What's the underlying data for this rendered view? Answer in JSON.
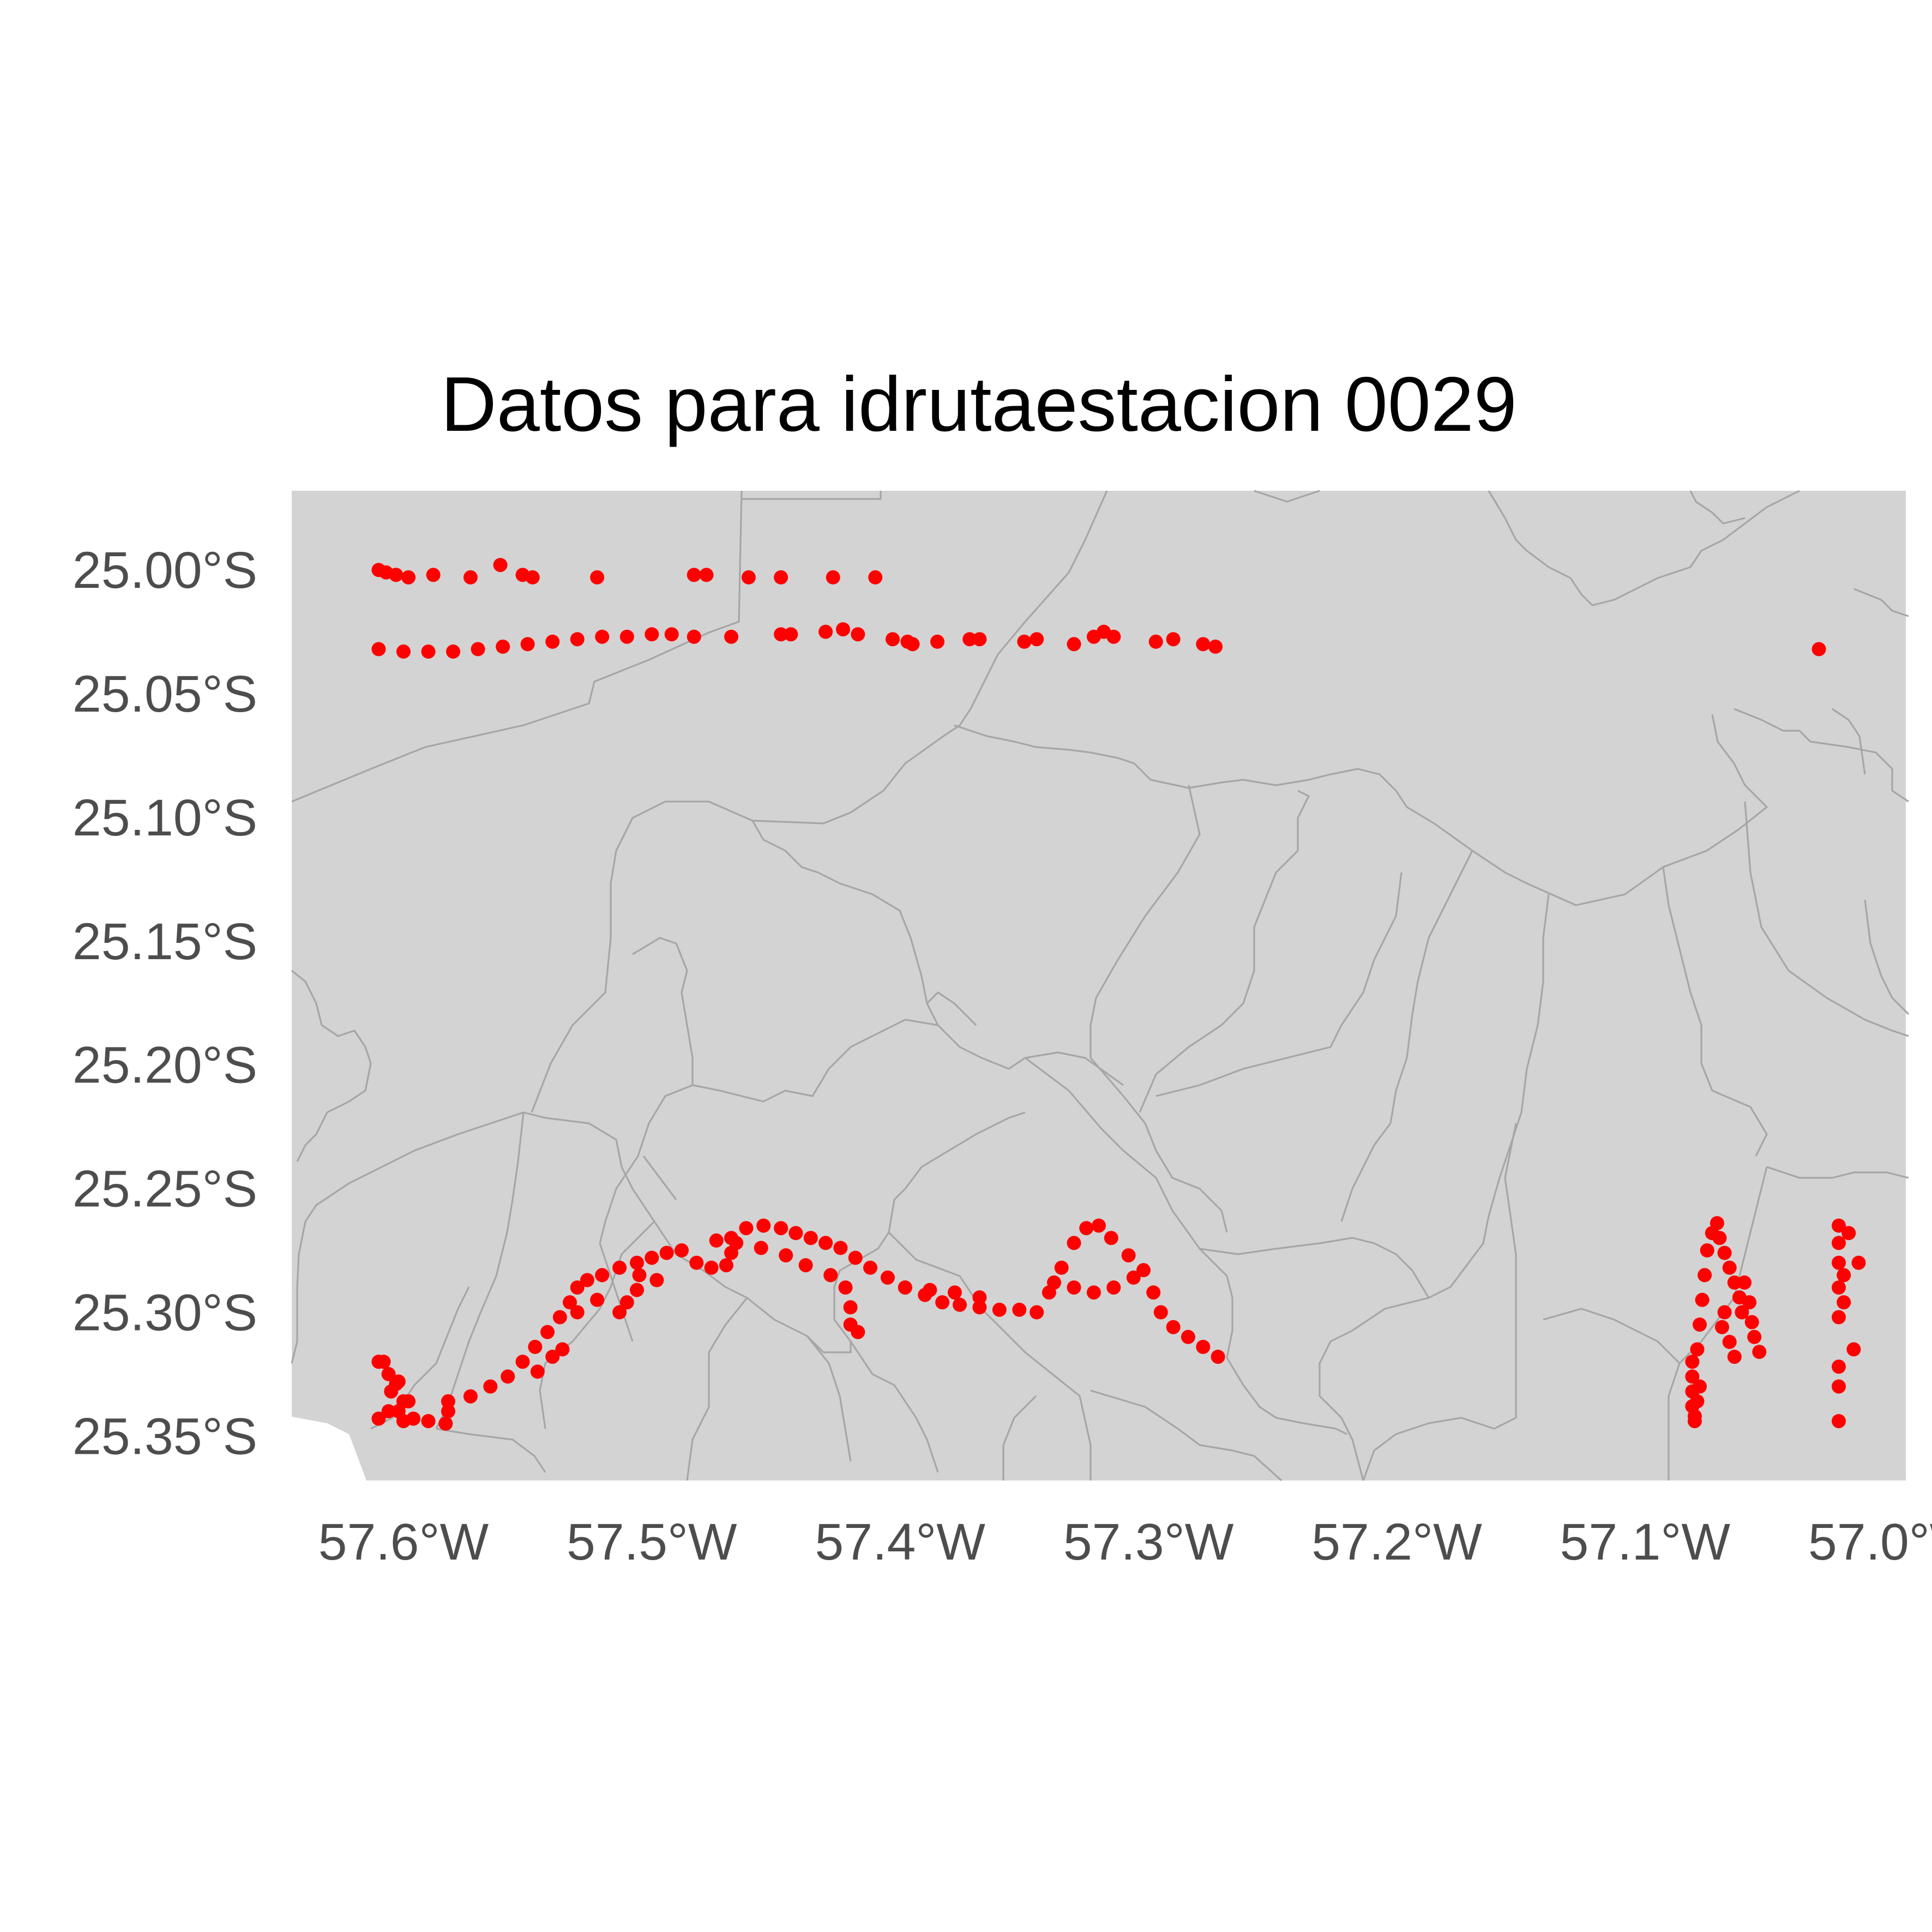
{
  "chart_data": {
    "type": "scatter",
    "title": "Datos para idrutaestacion 0029",
    "xlabel": "",
    "ylabel": "",
    "xlim": [
      -57.645,
      -56.995
    ],
    "ylim": [
      -25.368,
      -24.968
    ],
    "x_ticks": [
      {
        "value": -57.6,
        "label": "57.6°W"
      },
      {
        "value": -57.5,
        "label": "57.5°W"
      },
      {
        "value": -57.4,
        "label": "57.4°W"
      },
      {
        "value": -57.3,
        "label": "57.3°W"
      },
      {
        "value": -57.2,
        "label": "57.2°W"
      },
      {
        "value": -57.1,
        "label": "57.1°W"
      },
      {
        "value": -57.0,
        "label": "57.0°W"
      }
    ],
    "y_ticks": [
      {
        "value": -25.0,
        "label": "25.00°S"
      },
      {
        "value": -25.05,
        "label": "25.05°S"
      },
      {
        "value": -25.1,
        "label": "25.10°S"
      },
      {
        "value": -25.15,
        "label": "25.15°S"
      },
      {
        "value": -25.2,
        "label": "25.20°S"
      },
      {
        "value": -25.25,
        "label": "25.25°S"
      },
      {
        "value": -25.3,
        "label": "25.30°S"
      },
      {
        "value": -25.35,
        "label": "25.35°S"
      }
    ],
    "grid": false,
    "legend": "none",
    "colors": {
      "points": "#ff0000",
      "land": "#d3d3d3",
      "boundaries": "#a6a6a6",
      "title": "#000000",
      "ticks": "#4d4d4d"
    },
    "series": [
      {
        "points": [
          [
            -57.61,
            -25.0
          ],
          [
            -57.607,
            -25.001
          ],
          [
            -57.603,
            -25.002
          ],
          [
            -57.598,
            -25.003
          ],
          [
            -57.588,
            -25.002
          ],
          [
            -57.573,
            -25.003
          ],
          [
            -57.561,
            -24.998
          ],
          [
            -57.552,
            -25.002
          ],
          [
            -57.548,
            -25.003
          ],
          [
            -57.522,
            -25.003
          ],
          [
            -57.483,
            -25.002
          ],
          [
            -57.478,
            -25.002
          ],
          [
            -57.461,
            -25.003
          ],
          [
            -57.448,
            -25.003
          ],
          [
            -57.427,
            -25.003
          ],
          [
            -57.41,
            -25.003
          ],
          [
            -57.61,
            -25.032
          ],
          [
            -57.6,
            -25.033
          ],
          [
            -57.59,
            -25.033
          ],
          [
            -57.58,
            -25.033
          ],
          [
            -57.57,
            -25.032
          ],
          [
            -57.56,
            -25.031
          ],
          [
            -57.55,
            -25.03
          ],
          [
            -57.54,
            -25.029
          ],
          [
            -57.53,
            -25.028
          ],
          [
            -57.52,
            -25.027
          ],
          [
            -57.51,
            -25.027
          ],
          [
            -57.5,
            -25.026
          ],
          [
            -57.492,
            -25.026
          ],
          [
            -57.483,
            -25.027
          ],
          [
            -57.468,
            -25.027
          ],
          [
            -57.448,
            -25.026
          ],
          [
            -57.444,
            -25.026
          ],
          [
            -57.43,
            -25.025
          ],
          [
            -57.423,
            -25.024
          ],
          [
            -57.417,
            -25.026
          ],
          [
            -57.403,
            -25.028
          ],
          [
            -57.397,
            -25.029
          ],
          [
            -57.395,
            -25.03
          ],
          [
            -57.385,
            -25.029
          ],
          [
            -57.372,
            -25.028
          ],
          [
            -57.368,
            -25.028
          ],
          [
            -57.35,
            -25.029
          ],
          [
            -57.345,
            -25.028
          ],
          [
            -57.33,
            -25.03
          ],
          [
            -57.322,
            -25.027
          ],
          [
            -57.318,
            -25.025
          ],
          [
            -57.314,
            -25.027
          ],
          [
            -57.297,
            -25.029
          ],
          [
            -57.29,
            -25.028
          ],
          [
            -57.278,
            -25.03
          ],
          [
            -57.273,
            -25.031
          ],
          [
            -57.61,
            -25.32
          ],
          [
            -57.606,
            -25.325
          ],
          [
            -57.602,
            -25.328
          ],
          [
            -57.605,
            -25.332
          ],
          [
            -57.6,
            -25.336
          ],
          [
            -57.602,
            -25.34
          ],
          [
            -57.61,
            -25.343
          ],
          [
            -57.6,
            -25.344
          ],
          [
            -57.59,
            -25.344
          ],
          [
            -57.583,
            -25.345
          ],
          [
            -57.582,
            -25.34
          ],
          [
            -57.582,
            -25.336
          ],
          [
            -57.573,
            -25.334
          ],
          [
            -57.565,
            -25.33
          ],
          [
            -57.558,
            -25.326
          ],
          [
            -57.552,
            -25.32
          ],
          [
            -57.547,
            -25.314
          ],
          [
            -57.542,
            -25.308
          ],
          [
            -57.537,
            -25.302
          ],
          [
            -57.533,
            -25.296
          ],
          [
            -57.53,
            -25.29
          ],
          [
            -57.526,
            -25.287
          ],
          [
            -57.52,
            -25.285
          ],
          [
            -57.513,
            -25.282
          ],
          [
            -57.506,
            -25.28
          ],
          [
            -57.5,
            -25.278
          ],
          [
            -57.494,
            -25.276
          ],
          [
            -57.488,
            -25.275
          ],
          [
            -57.482,
            -25.28
          ],
          [
            -57.476,
            -25.282
          ],
          [
            -57.47,
            -25.281
          ],
          [
            -57.468,
            -25.276
          ],
          [
            -57.468,
            -25.27
          ],
          [
            -57.462,
            -25.266
          ],
          [
            -57.455,
            -25.265
          ],
          [
            -57.448,
            -25.266
          ],
          [
            -57.442,
            -25.268
          ],
          [
            -57.436,
            -25.27
          ],
          [
            -57.43,
            -25.272
          ],
          [
            -57.424,
            -25.274
          ],
          [
            -57.418,
            -25.278
          ],
          [
            -57.412,
            -25.282
          ],
          [
            -57.405,
            -25.286
          ],
          [
            -57.398,
            -25.29
          ],
          [
            -57.39,
            -25.293
          ],
          [
            -57.383,
            -25.296
          ],
          [
            -57.376,
            -25.297
          ],
          [
            -57.368,
            -25.298
          ],
          [
            -57.36,
            -25.299
          ],
          [
            -57.352,
            -25.299
          ],
          [
            -57.345,
            -25.3
          ],
          [
            -57.34,
            -25.292
          ],
          [
            -57.335,
            -25.282
          ],
          [
            -57.33,
            -25.272
          ],
          [
            -57.325,
            -25.266
          ],
          [
            -57.32,
            -25.265
          ],
          [
            -57.315,
            -25.27
          ],
          [
            -57.308,
            -25.277
          ],
          [
            -57.302,
            -25.283
          ],
          [
            -57.298,
            -25.292
          ],
          [
            -57.295,
            -25.3
          ],
          [
            -57.29,
            -25.306
          ],
          [
            -57.284,
            -25.31
          ],
          [
            -57.278,
            -25.314
          ],
          [
            -57.272,
            -25.318
          ],
          [
            -57.338,
            -25.288
          ],
          [
            -57.33,
            -25.29
          ],
          [
            -57.322,
            -25.292
          ],
          [
            -57.314,
            -25.29
          ],
          [
            -57.306,
            -25.286
          ],
          [
            -57.368,
            -25.294
          ],
          [
            -57.378,
            -25.292
          ],
          [
            -57.388,
            -25.291
          ],
          [
            -57.398,
            -25.29
          ],
          [
            -57.474,
            -25.271
          ],
          [
            -57.466,
            -25.272
          ],
          [
            -57.456,
            -25.274
          ],
          [
            -57.446,
            -25.277
          ],
          [
            -57.438,
            -25.281
          ],
          [
            -57.428,
            -25.285
          ],
          [
            -57.422,
            -25.29
          ],
          [
            -57.42,
            -25.298
          ],
          [
            -57.42,
            -25.305
          ],
          [
            -57.417,
            -25.308
          ],
          [
            -57.513,
            -25.3
          ],
          [
            -57.51,
            -25.296
          ],
          [
            -57.506,
            -25.291
          ],
          [
            -57.505,
            -25.285
          ],
          [
            -57.536,
            -25.315
          ],
          [
            -57.54,
            -25.318
          ],
          [
            -57.546,
            -25.324
          ],
          [
            -57.53,
            -25.3
          ],
          [
            -57.522,
            -25.295
          ],
          [
            -57.498,
            -25.287
          ],
          [
            -57.608,
            -25.32
          ],
          [
            -57.603,
            -25.329
          ],
          [
            -57.598,
            -25.336
          ],
          [
            -57.606,
            -25.34
          ],
          [
            -57.596,
            -25.343
          ],
          [
            -57.03,
            -25.032
          ],
          [
            -57.081,
            -25.32
          ],
          [
            -57.081,
            -25.326
          ],
          [
            -57.081,
            -25.332
          ],
          [
            -57.081,
            -25.338
          ],
          [
            -57.08,
            -25.344
          ],
          [
            -57.079,
            -25.315
          ],
          [
            -57.078,
            -25.305
          ],
          [
            -57.077,
            -25.295
          ],
          [
            -57.076,
            -25.285
          ],
          [
            -57.075,
            -25.275
          ],
          [
            -57.073,
            -25.268
          ],
          [
            -57.071,
            -25.264
          ],
          [
            -57.07,
            -25.27
          ],
          [
            -57.068,
            -25.276
          ],
          [
            -57.066,
            -25.282
          ],
          [
            -57.064,
            -25.288
          ],
          [
            -57.062,
            -25.294
          ],
          [
            -57.061,
            -25.3
          ],
          [
            -57.068,
            -25.3
          ],
          [
            -57.069,
            -25.306
          ],
          [
            -57.066,
            -25.312
          ],
          [
            -57.064,
            -25.318
          ],
          [
            -57.06,
            -25.288
          ],
          [
            -57.058,
            -25.296
          ],
          [
            -57.057,
            -25.304
          ],
          [
            -57.056,
            -25.31
          ],
          [
            -57.054,
            -25.316
          ],
          [
            -57.078,
            -25.33
          ],
          [
            -57.079,
            -25.336
          ],
          [
            -57.08,
            -25.342
          ],
          [
            -57.022,
            -25.265
          ],
          [
            -57.018,
            -25.268
          ],
          [
            -57.022,
            -25.272
          ],
          [
            -57.022,
            -25.28
          ],
          [
            -57.02,
            -25.285
          ],
          [
            -57.022,
            -25.29
          ],
          [
            -57.02,
            -25.296
          ],
          [
            -57.022,
            -25.302
          ],
          [
            -57.014,
            -25.28
          ],
          [
            -57.016,
            -25.315
          ],
          [
            -57.022,
            -25.322
          ],
          [
            -57.022,
            -25.33
          ],
          [
            -57.022,
            -25.344
          ]
        ]
      }
    ]
  }
}
